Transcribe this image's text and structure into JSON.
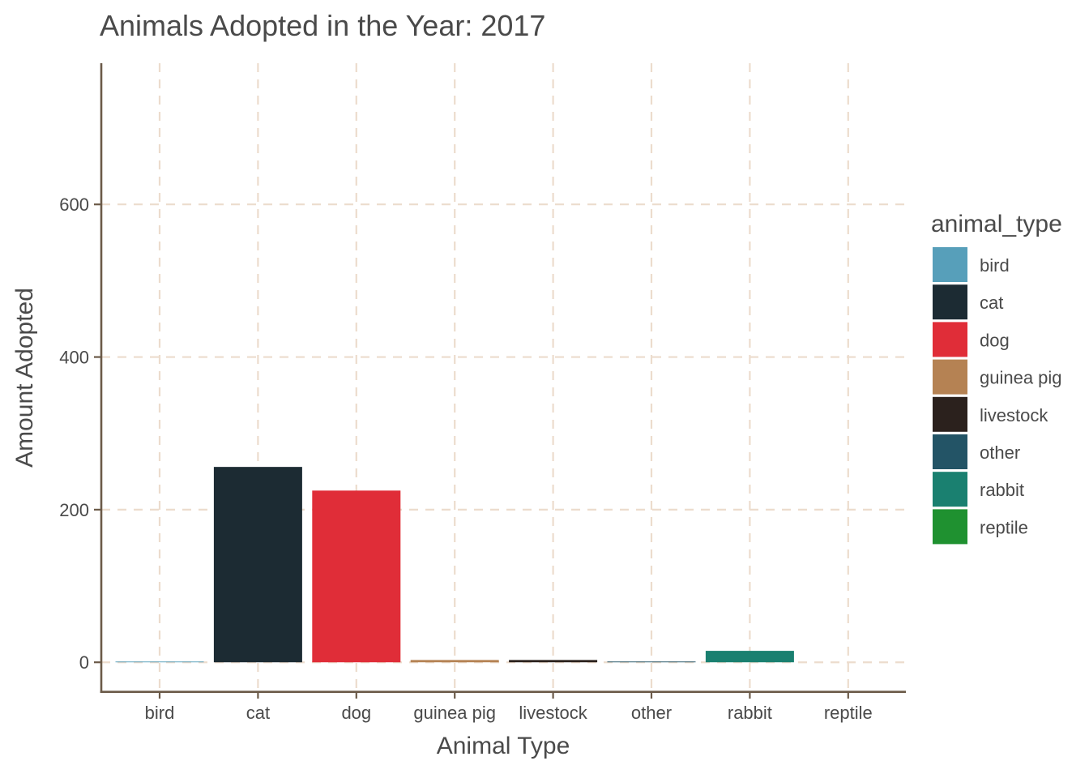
{
  "chart_data": {
    "type": "bar",
    "title": "Animals Adopted in the Year: 2017",
    "xlabel": "Animal Type",
    "ylabel": "Amount Adopted",
    "categories": [
      "bird",
      "cat",
      "dog",
      "guinea pig",
      "livestock",
      "other",
      "rabbit",
      "reptile"
    ],
    "values": [
      1,
      256,
      225,
      3,
      3,
      1,
      15,
      0
    ],
    "colors": [
      "#579fba",
      "#1c2b33",
      "#e02d38",
      "#b58253",
      "#2b211d",
      "#235466",
      "#1a8070",
      "#1f9130"
    ],
    "ylim": [
      -38,
      785
    ],
    "yticks": [
      "0",
      "200",
      "400",
      "600"
    ],
    "ytick_values": [
      0,
      200,
      400,
      600
    ],
    "grid": "dashed major lines on both axes",
    "legend": {
      "title": "animal_type",
      "placement": "right",
      "items": [
        "bird",
        "cat",
        "dog",
        "guinea pig",
        "livestock",
        "other",
        "rabbit",
        "reptile"
      ]
    }
  }
}
